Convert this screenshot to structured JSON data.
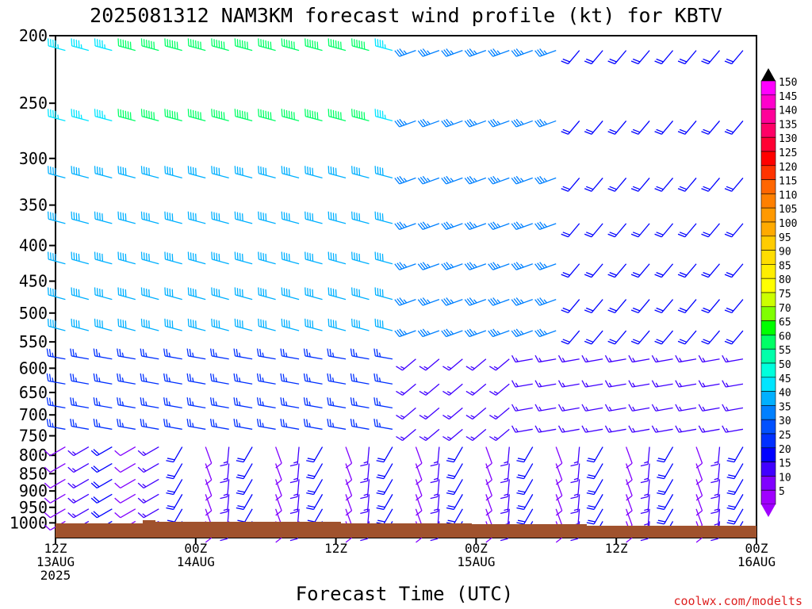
{
  "chart_data": {
    "type": "wind-barb-time-height",
    "title": "2025081312 NAM3KM forecast wind profile (kt) for KBTV",
    "xlabel": "Forecast Time (UTC)",
    "ylabel": "",
    "credit": "coolwx.com/modelts",
    "y_levels_hPa": [
      200,
      250,
      300,
      350,
      400,
      450,
      500,
      550,
      600,
      650,
      700,
      750,
      800,
      850,
      900,
      950,
      1000
    ],
    "x_ticks": [
      {
        "line1": "12Z",
        "line2": "13AUG",
        "line3": "2025"
      },
      {
        "line1": "00Z",
        "line2": "14AUG",
        "line3": ""
      },
      {
        "line1": "12Z",
        "line2": "",
        "line3": ""
      },
      {
        "line1": "00Z",
        "line2": "15AUG",
        "line3": ""
      },
      {
        "line1": "12Z",
        "line2": "",
        "line3": ""
      },
      {
        "line1": "00Z",
        "line2": "16AUG",
        "line3": ""
      }
    ],
    "colorbar_levels": [
      150,
      145,
      140,
      135,
      130,
      125,
      120,
      115,
      110,
      105,
      100,
      95,
      90,
      85,
      80,
      75,
      70,
      65,
      60,
      55,
      50,
      45,
      40,
      35,
      30,
      25,
      20,
      15,
      10,
      5
    ],
    "colorbar_colors": [
      "#ff00ff",
      "#ff00cc",
      "#ff0099",
      "#ff0066",
      "#ff0033",
      "#ff0000",
      "#ff3300",
      "#ff6600",
      "#ff8000",
      "#ff9900",
      "#ffaa00",
      "#ffcc00",
      "#ffdd00",
      "#ffee00",
      "#ffff00",
      "#ccff00",
      "#80ff00",
      "#00ff00",
      "#00ff66",
      "#00ffaa",
      "#00ffdd",
      "#00e5ff",
      "#00b0ff",
      "#0080ff",
      "#0050ff",
      "#0030ff",
      "#0000ff",
      "#4000ff",
      "#8000ff",
      "#a000ff"
    ]
  }
}
